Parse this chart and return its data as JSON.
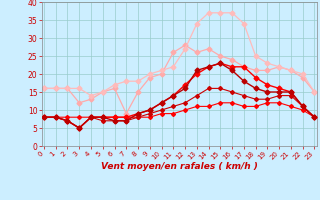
{
  "x": [
    0,
    1,
    2,
    3,
    4,
    5,
    6,
    7,
    8,
    9,
    10,
    11,
    12,
    13,
    14,
    15,
    16,
    17,
    18,
    19,
    20,
    21,
    22,
    23
  ],
  "series": [
    {
      "color": "#ff0000",
      "linewidth": 0.8,
      "marker": "D",
      "markersize": 2.0,
      "zorder": 3,
      "values": [
        8,
        8,
        8,
        8,
        8,
        8,
        8,
        8,
        8,
        8,
        9,
        9,
        10,
        11,
        11,
        12,
        12,
        11,
        11,
        12,
        12,
        11,
        10,
        8
      ]
    },
    {
      "color": "#cc0000",
      "linewidth": 0.8,
      "marker": "D",
      "markersize": 2.0,
      "zorder": 3,
      "values": [
        8,
        8,
        7,
        5,
        8,
        7,
        7,
        7,
        8,
        9,
        10,
        11,
        12,
        14,
        16,
        16,
        15,
        14,
        13,
        13,
        14,
        14,
        11,
        8
      ]
    },
    {
      "color": "#ff0000",
      "linewidth": 1.0,
      "marker": "D",
      "markersize": 2.5,
      "zorder": 4,
      "values": [
        8,
        8,
        7,
        5,
        8,
        8,
        8,
        8,
        9,
        10,
        12,
        14,
        17,
        20,
        22,
        23,
        22,
        22,
        19,
        17,
        16,
        15,
        11,
        8
      ]
    },
    {
      "color": "#bb0000",
      "linewidth": 1.0,
      "marker": "D",
      "markersize": 2.5,
      "zorder": 4,
      "values": [
        8,
        8,
        7,
        5,
        8,
        8,
        7,
        7,
        9,
        10,
        12,
        14,
        16,
        21,
        22,
        23,
        21,
        18,
        16,
        15,
        15,
        15,
        11,
        8
      ]
    },
    {
      "color": "#ffaaaa",
      "linewidth": 0.9,
      "marker": "D",
      "markersize": 2.5,
      "zorder": 2,
      "values": [
        16,
        16,
        16,
        12,
        13,
        15,
        16,
        9,
        15,
        19,
        20,
        26,
        28,
        26,
        27,
        25,
        24,
        22,
        21,
        21,
        22,
        21,
        19,
        15
      ]
    },
    {
      "color": "#ffbbbb",
      "linewidth": 0.9,
      "marker": "D",
      "markersize": 2.5,
      "zorder": 2,
      "values": [
        16,
        16,
        16,
        16,
        14,
        15,
        17,
        18,
        18,
        20,
        21,
        22,
        27,
        34,
        37,
        37,
        37,
        34,
        25,
        23,
        22,
        21,
        20,
        15
      ]
    }
  ],
  "xlabel": "Vent moyen/en rafales ( km/h )",
  "xlim": [
    -0.2,
    23.2
  ],
  "ylim": [
    0,
    40
  ],
  "xticks": [
    0,
    1,
    2,
    3,
    4,
    5,
    6,
    7,
    8,
    9,
    10,
    11,
    12,
    13,
    14,
    15,
    16,
    17,
    18,
    19,
    20,
    21,
    22,
    23
  ],
  "yticks": [
    0,
    5,
    10,
    15,
    20,
    25,
    30,
    35,
    40
  ],
  "bg_color": "#cceeff",
  "grid_color": "#99cccc",
  "xlabel_color": "#cc0000",
  "tick_color": "#cc0000",
  "spine_color": "#888888"
}
